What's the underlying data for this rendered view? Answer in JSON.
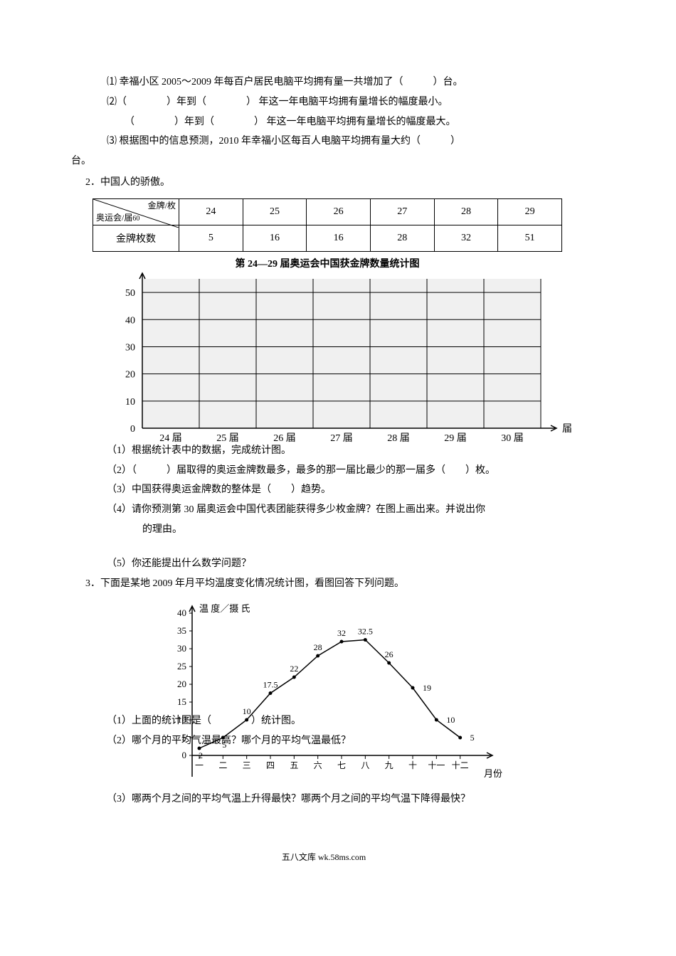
{
  "q1": {
    "item1": "⑴ 幸福小区 2005～2009 年每百户居民电脑平均拥有量一共增加了（　　　）台。",
    "item2a": "⑵（　　　　）年到（　　　　） 年这一年电脑平均拥有量增长的幅度最小。",
    "item2b": "（　　　　）年到（　　　　） 年这一年电脑平均拥有量增长的幅度最大。",
    "item3a": "⑶ 根据图中的信息预测，2010 年幸福小区每百人电脑平均拥有量大约（　　　）",
    "item3b": "台。"
  },
  "q2": {
    "heading": "2．中国人的骄傲。",
    "table": {
      "top_left_main": "奥运会/届",
      "top_left_sub": "金牌/枚",
      "top_num": "60",
      "sessions": [
        "24",
        "25",
        "26",
        "27",
        "28",
        "29"
      ],
      "row_label": "金牌枚数",
      "values": [
        "5",
        "16",
        "16",
        "28",
        "32",
        "51"
      ]
    },
    "chart": {
      "title": "第 24—29 届奥运会中国获金牌数量统计图",
      "y_ticks": [
        0,
        10,
        20,
        30,
        40,
        50
      ],
      "x_labels": [
        "24 届",
        "25 届",
        "26 届",
        "27 届",
        "28 届",
        "29 届",
        "30 届"
      ],
      "x_axis_label": "届",
      "y_max": 55,
      "bg": "#f0f0f0",
      "grid_color": "#000",
      "grid_width": 1
    },
    "sub1": "（1）根据统计表中的数据，完成统计图。",
    "sub2": "（2）（　　　）届取得的奥运金牌数最多，最多的那一届比最少的那一届多（　　）枚。",
    "sub3": "（3）中国获得奥运金牌数的整体是（　　）趋势。",
    "sub4a": "（4）请你预测第 30 届奥运会中国代表团能获得多少枚金牌？在图上画出来。并说出你",
    "sub4b": "的理由。",
    "sub5": "（5）你还能提出什么数学问题？"
  },
  "q3": {
    "heading": "3．下面是某地 2009 年月平均温度变化情况统计图，看图回答下列问题。",
    "chart": {
      "y_label1": "温 度／摄 氏",
      "y_ticks": [
        0,
        5,
        10,
        15,
        20,
        25,
        30,
        35,
        40
      ],
      "months": [
        "一",
        "二",
        "三",
        "四",
        "五",
        "六",
        "七",
        "八",
        "九",
        "十",
        "十一",
        "十二"
      ],
      "data": [
        2,
        5,
        10,
        17.5,
        22,
        28,
        32,
        32.5,
        26,
        19,
        10,
        5
      ],
      "x_axis_label": "月份",
      "line_color": "#000",
      "point_color": "#000",
      "line_width": 1.5
    },
    "sub1": "（1）上面的统计图是（　　　　）统计图。",
    "sub2": "（2）哪个月的平均气温最高？哪个月的平均气温最低？",
    "sub3": "（3）哪两个月之间的平均气温上升得最快？哪两个月之间的平均气温下降得最快？"
  },
  "footer": "五八文库 wk.58ms.com"
}
